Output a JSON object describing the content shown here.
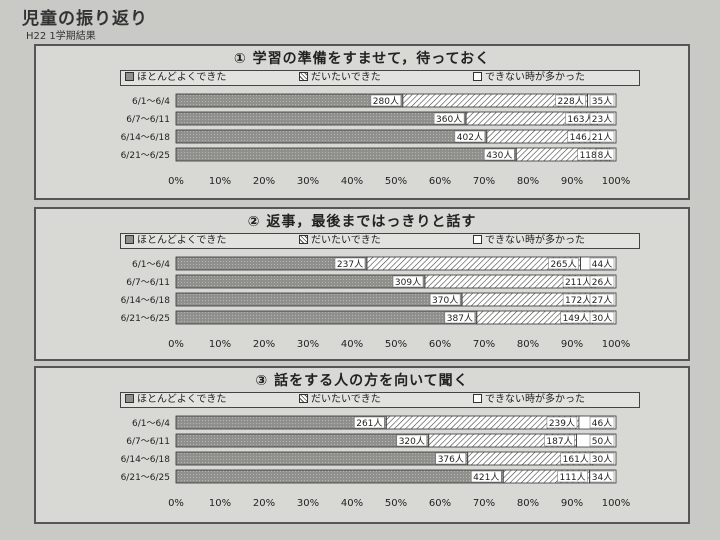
{
  "page": {
    "title": "児童の振り返り",
    "subtitle": "H22  1学期結果"
  },
  "colors": {
    "positive": "#8f8f8c",
    "middle": "hatch",
    "negative": "#ffffff"
  },
  "chart_data": [
    {
      "type": "bar",
      "orientation": "horizontal",
      "stacked": "percent",
      "title": "① 学習の準備をすませて，待っておく",
      "legend_placement": "top",
      "categories": [
        "6/1～6/4",
        "6/7～6/11",
        "6/14～6/18",
        "6/21～6/25"
      ],
      "series": [
        {
          "name": "ほとんどよくできた",
          "values": [
            280,
            360,
            402,
            430
          ],
          "labels": [
            "280人",
            "360人",
            "402人",
            "430人"
          ]
        },
        {
          "name": "だいたいできた",
          "values": [
            228,
            163,
            146,
            118
          ],
          "labels": [
            "228人",
            "163人",
            "146人",
            "118人"
          ]
        },
        {
          "name": "できない時が多かった",
          "values": [
            35,
            23,
            21,
            8
          ],
          "labels": [
            "35人",
            "23人",
            "21人",
            "8人"
          ]
        }
      ],
      "xticks": [
        "0%",
        "10%",
        "20%",
        "30%",
        "40%",
        "50%",
        "60%",
        "70%",
        "80%",
        "90%",
        "100%"
      ],
      "xlim": [
        0,
        100
      ]
    },
    {
      "type": "bar",
      "orientation": "horizontal",
      "stacked": "percent",
      "title": "② 返事，最後まではっきりと話す",
      "legend_placement": "top",
      "categories": [
        "6/1～6/4",
        "6/7～6/11",
        "6/14～6/18",
        "6/21～6/25"
      ],
      "series": [
        {
          "name": "ほとんどよくできた",
          "values": [
            237,
            309,
            370,
            387
          ],
          "labels": [
            "237人",
            "309人",
            "370人",
            "387人"
          ]
        },
        {
          "name": "だいたいできた",
          "values": [
            265,
            211,
            172,
            149
          ],
          "labels": [
            "265人",
            "211人",
            "172人",
            "149人"
          ]
        },
        {
          "name": "できない時が多かった",
          "values": [
            44,
            26,
            27,
            30
          ],
          "labels": [
            "44人",
            "26人",
            "27人",
            "30人"
          ]
        }
      ],
      "xticks": [
        "0%",
        "10%",
        "20%",
        "30%",
        "40%",
        "50%",
        "60%",
        "70%",
        "80%",
        "90%",
        "100%"
      ],
      "xlim": [
        0,
        100
      ]
    },
    {
      "type": "bar",
      "orientation": "horizontal",
      "stacked": "percent",
      "title": "③ 話をする人の方を向いて聞く",
      "legend_placement": "top",
      "categories": [
        "6/1～6/4",
        "6/7～6/11",
        "6/14～6/18",
        "6/21～6/25"
      ],
      "series": [
        {
          "name": "ほとんどよくできた",
          "values": [
            261,
            320,
            376,
            421
          ],
          "labels": [
            "261人",
            "320人",
            "376人",
            "421人"
          ]
        },
        {
          "name": "だいたいできた",
          "values": [
            239,
            187,
            161,
            111
          ],
          "labels": [
            "239人",
            "187人",
            "161人",
            "111人"
          ]
        },
        {
          "name": "できない時が多かった",
          "values": [
            46,
            50,
            30,
            34
          ],
          "labels": [
            "46人",
            "50人",
            "30人",
            "34人"
          ]
        }
      ],
      "xticks": [
        "0%",
        "10%",
        "20%",
        "30%",
        "40%",
        "50%",
        "60%",
        "70%",
        "80%",
        "90%",
        "100%"
      ],
      "xlim": [
        0,
        100
      ]
    }
  ]
}
